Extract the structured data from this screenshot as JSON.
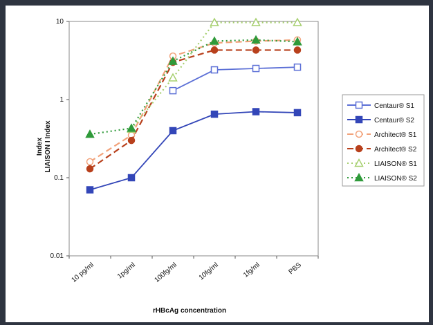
{
  "chart_data": {
    "type": "line",
    "categories": [
      "10 pg/ml",
      "1pg/ml",
      "100fg/ml",
      "10fg/ml",
      "1fg/ml",
      "PBS"
    ],
    "ylabel_lines": [
      "Index",
      "LIAISON I Index"
    ],
    "xlabel": "rHBcAg concentration",
    "yscale": "log",
    "ylim": [
      0.01,
      10
    ],
    "ytick_labels": [
      "10",
      "1",
      "0.1",
      "0.01"
    ],
    "grid": false,
    "legend_position": "right",
    "series": [
      {
        "name": "Centaur® S1",
        "color": "#5b6fd6",
        "dash": "solid",
        "marker": "square-open",
        "values": [
          null,
          null,
          1.3,
          2.4,
          2.5,
          2.6
        ]
      },
      {
        "name": "Centaur® S2",
        "color": "#3346b8",
        "dash": "solid",
        "marker": "square-filled",
        "values": [
          0.07,
          0.1,
          0.4,
          0.65,
          0.7,
          0.68
        ]
      },
      {
        "name": "Architect® S1",
        "color": "#f2a27a",
        "dash": "dashed",
        "marker": "circle-open",
        "values": [
          0.16,
          0.35,
          3.6,
          5.3,
          5.6,
          5.8
        ]
      },
      {
        "name": "Architect® S2",
        "color": "#b8401c",
        "dash": "dashed",
        "marker": "circle-filled",
        "values": [
          0.13,
          0.3,
          3.0,
          4.3,
          4.3,
          4.3
        ]
      },
      {
        "name": "LIAISON® S1",
        "color": "#a6cf6e",
        "dash": "dotted",
        "marker": "triangle-open",
        "values": [
          null,
          0.42,
          1.9,
          9.7,
          9.7,
          9.7
        ]
      },
      {
        "name": "LIAISON® S2",
        "color": "#2f9a3a",
        "dash": "dotted",
        "marker": "triangle-filled",
        "values": [
          0.36,
          0.43,
          3.1,
          5.6,
          5.8,
          5.5
        ]
      }
    ]
  }
}
